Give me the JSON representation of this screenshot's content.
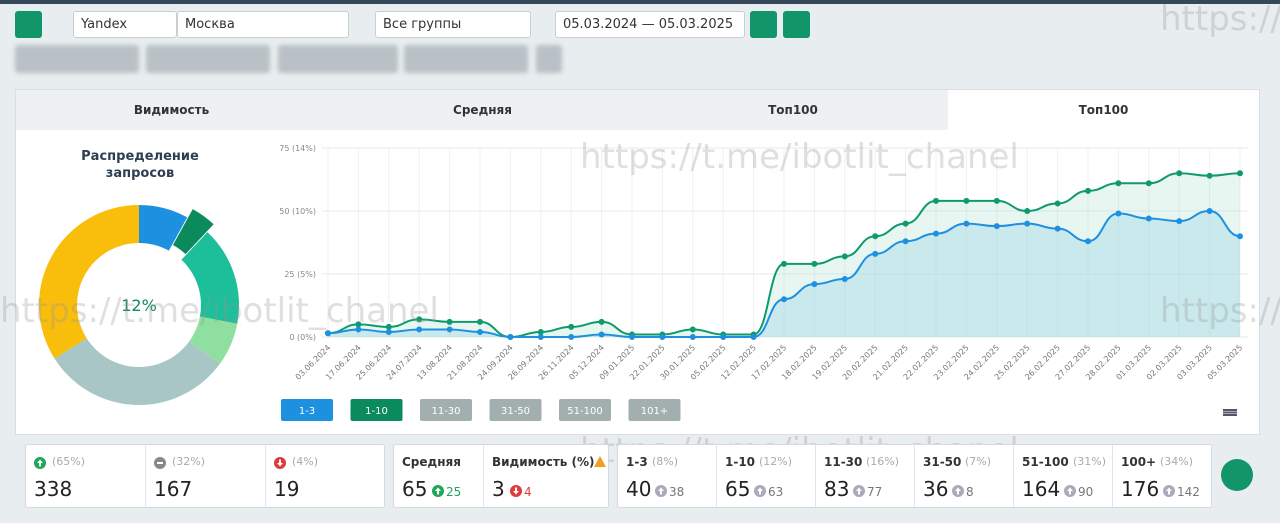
{
  "toolbar": {
    "engine": "Yandex",
    "region": "Москва",
    "group": "Все группы",
    "date_range": "05.03.2024 — 05.03.2025"
  },
  "tabs": [
    "Видимость",
    "Средняя",
    "Топ100",
    "Топ100"
  ],
  "watermark": "https://t.me/ibotlit_chanel",
  "chart_data": [
    {
      "type": "pie",
      "title": "Распределение запросов",
      "center_label": "12%",
      "values": [
        8,
        4,
        16,
        7,
        31,
        34
      ],
      "colors": [
        "#1e90e0",
        "#0b8a5c",
        "#1dbf9a",
        "#8fe0a0",
        "#a9c6c6",
        "#f8be0b"
      ]
    },
    {
      "type": "line",
      "x": [
        "03.06.2024",
        "17.06.2024",
        "25.06.2024",
        "24.07.2024",
        "13.08.2024",
        "21.08.2024",
        "24.09.2024",
        "26.09.2024",
        "26.11.2024",
        "05.12.2024",
        "09.01.2025",
        "22.01.2025",
        "30.01.2025",
        "05.02.2025",
        "12.02.2025",
        "17.02.2025",
        "18.02.2025",
        "19.02.2025",
        "20.02.2025",
        "21.02.2025",
        "22.02.2025",
        "23.02.2025",
        "24.02.2025",
        "25.02.2025",
        "26.02.2025",
        "27.02.2025",
        "28.02.2025",
        "01.03.2025",
        "02.03.2025",
        "03.03.2025",
        "05.03.2025"
      ],
      "series": [
        {
          "name": "1-10",
          "color": "#0e9a6a",
          "values": [
            1.5,
            5,
            4,
            7,
            6,
            6,
            0,
            2,
            4,
            6,
            1,
            1,
            3,
            1,
            1,
            29,
            29,
            32,
            40,
            45,
            54,
            54,
            54,
            50,
            53,
            58,
            61,
            61,
            65,
            64,
            65
          ]
        },
        {
          "name": "1-3",
          "color": "#1e90e0",
          "values": [
            1.5,
            3,
            2,
            3,
            3,
            2,
            0,
            0,
            0,
            1,
            0,
            0,
            0,
            0,
            0,
            15,
            21,
            23,
            33,
            38,
            41,
            45,
            44,
            45,
            43,
            38,
            49,
            47,
            46,
            50,
            40
          ]
        }
      ],
      "ylim": [
        0,
        75
      ],
      "yticks": [
        {
          "value": 0,
          "label": "0 (0%)"
        },
        {
          "value": 25,
          "label": "25 (5%)"
        },
        {
          "value": 50,
          "label": "50 (10%)"
        },
        {
          "value": 75,
          "label": "75 (14%)"
        }
      ],
      "grid": true,
      "range_buttons": [
        {
          "label": "1-3",
          "color": "#1e90e0"
        },
        {
          "label": "1-10",
          "color": "#0b8a5c"
        },
        {
          "label": "11-30",
          "color": "#a3aeae"
        },
        {
          "label": "31-50",
          "color": "#a3aeae"
        },
        {
          "label": "51-100",
          "color": "#a3aeae"
        },
        {
          "label": "101+",
          "color": "#a3aeae"
        }
      ]
    }
  ],
  "stats": {
    "counts": [
      {
        "trend": "up",
        "share": "(65%)",
        "value": 338
      },
      {
        "trend": "flat",
        "share": "(32%)",
        "value": 167
      },
      {
        "trend": "down",
        "share": "(4%)",
        "value": 19
      }
    ],
    "metrics": [
      {
        "label": "Средняя",
        "value": 65,
        "trend": "up",
        "delta": 25
      },
      {
        "label": "Видимость (%)",
        "value": 3,
        "trend": "down",
        "delta": 4
      }
    ],
    "ranges": [
      {
        "label": "1-3",
        "share": "(8%)",
        "value": 40,
        "delta": 38
      },
      {
        "label": "1-10",
        "share": "(12%)",
        "value": 65,
        "delta": 63
      },
      {
        "label": "11-30",
        "share": "(16%)",
        "value": 83,
        "delta": 77
      },
      {
        "label": "31-50",
        "share": "(7%)",
        "value": 36,
        "delta": 8
      },
      {
        "label": "51-100",
        "share": "(31%)",
        "value": 164,
        "delta": 90
      },
      {
        "label": "100+",
        "share": "(34%)",
        "value": 176,
        "delta": 142
      }
    ]
  }
}
